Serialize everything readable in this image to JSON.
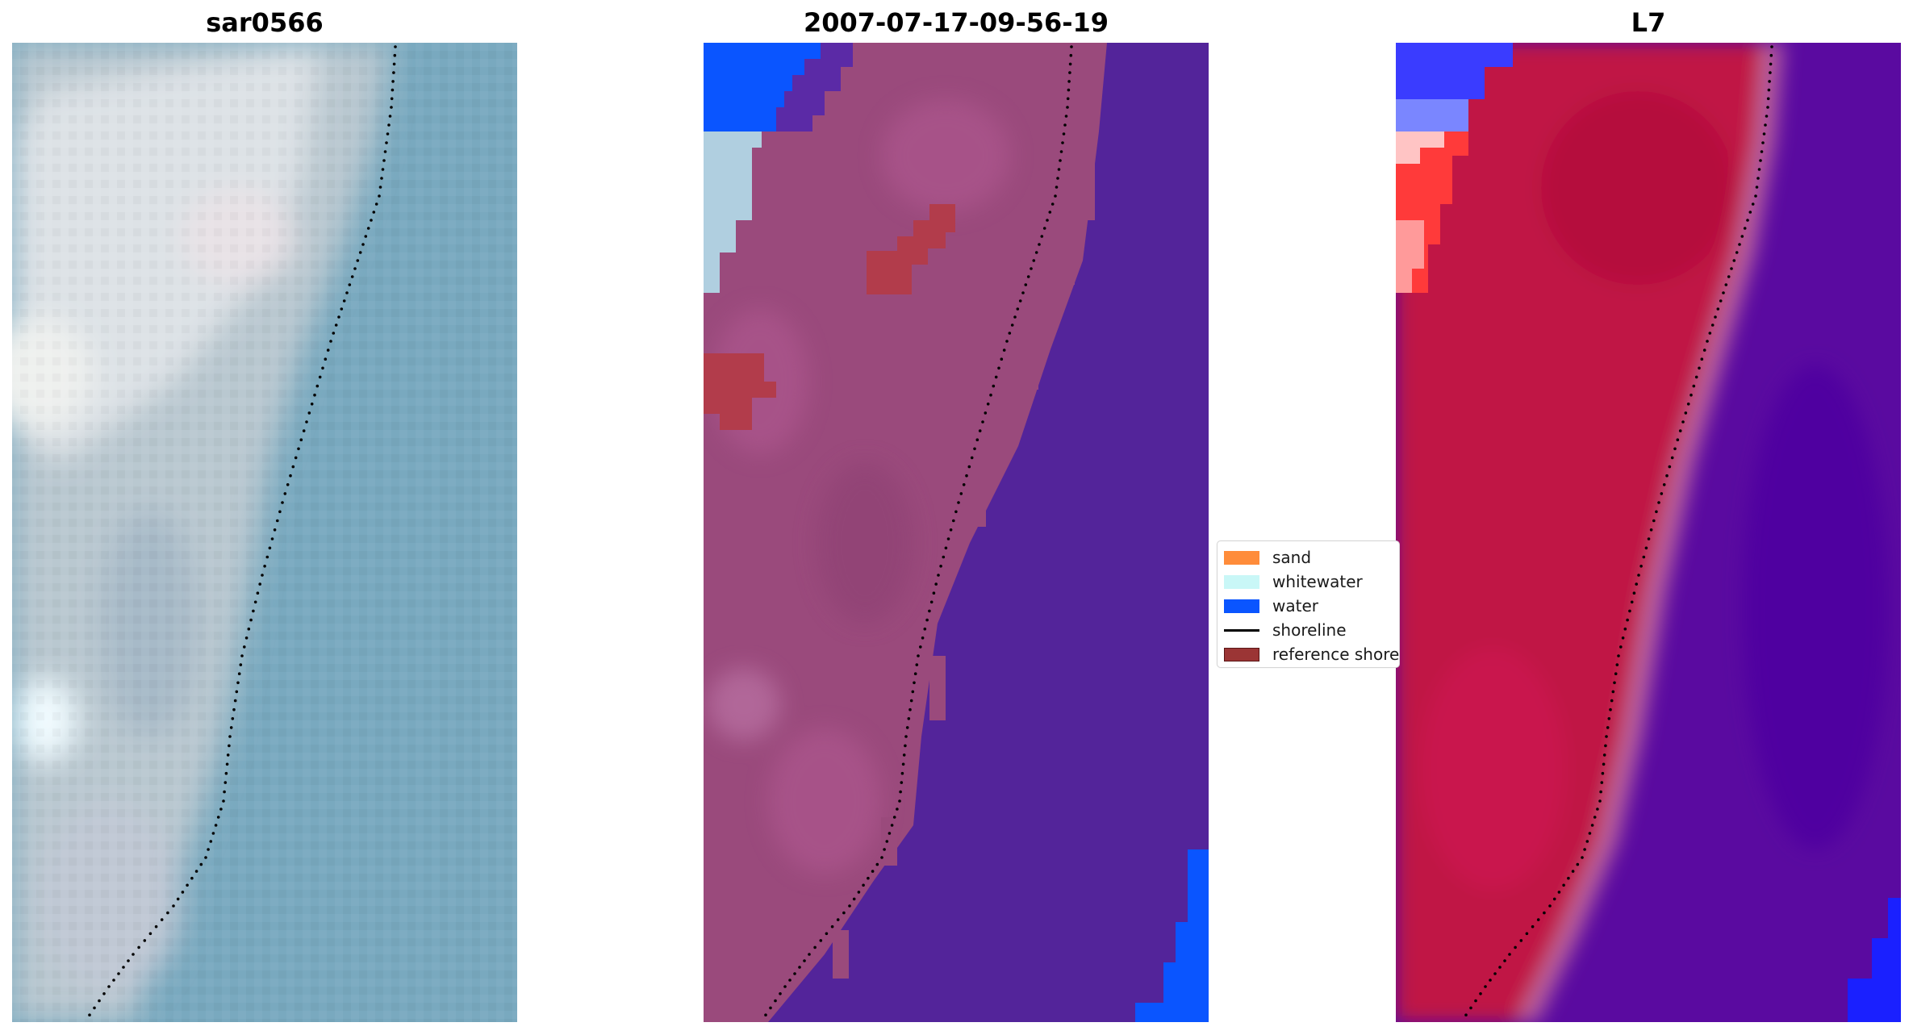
{
  "figure": {
    "panels": [
      {
        "title": "sar0566",
        "kind": "rgb"
      },
      {
        "title": "2007-07-17-09-56-19",
        "kind": "classified"
      },
      {
        "title": "L7",
        "kind": "index"
      }
    ]
  },
  "legend": {
    "items": [
      {
        "label": "sand",
        "type": "patch",
        "color": "#ff8c3a"
      },
      {
        "label": "whitewater",
        "type": "patch",
        "color": "#c9f7f7"
      },
      {
        "label": "water",
        "type": "patch",
        "color": "#0a55ff"
      },
      {
        "label": "shoreline",
        "type": "line",
        "color": "#000000"
      },
      {
        "label": "reference shoreline",
        "type": "patch",
        "color": "#9b3535"
      }
    ]
  },
  "colors": {
    "rgb_water": "#79a9bf",
    "rgb_land_light": "#d9dde0",
    "classified_land": "#9a4a7c",
    "classified_water": "#53249a",
    "index_land": "#c01844",
    "index_water": "#5a0aa0",
    "shoreline_dots": "#000000"
  }
}
